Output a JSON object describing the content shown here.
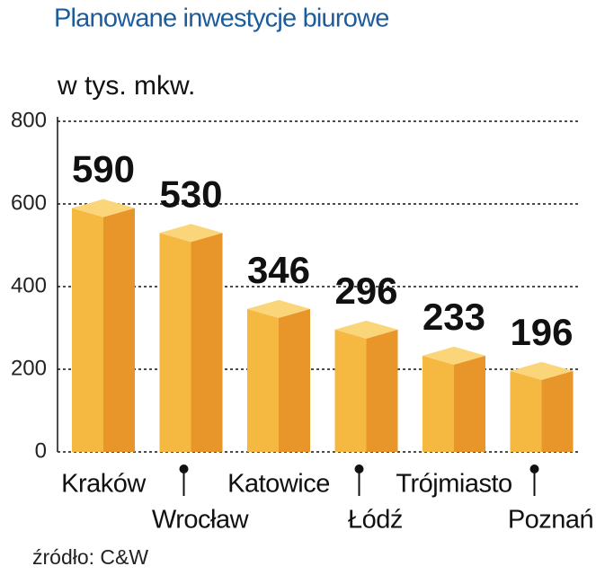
{
  "chart_data": {
    "type": "bar3d",
    "title": "Planowane inwestycje biurowe",
    "subtitle": "w tys. mkw.",
    "source": "źródło: C&W",
    "categories": [
      "Kraków",
      "Wrocław",
      "Katowice",
      "Łódź",
      "Trójmiasto",
      "Poznań"
    ],
    "values": [
      590,
      530,
      346,
      296,
      233,
      196
    ],
    "colors": {
      "front": "#f5b942",
      "side": "#e8962a",
      "top": "#fbd57a"
    },
    "ylim": [
      0,
      800
    ],
    "yticks": [
      0,
      200,
      400,
      600,
      800
    ],
    "grid": true
  }
}
